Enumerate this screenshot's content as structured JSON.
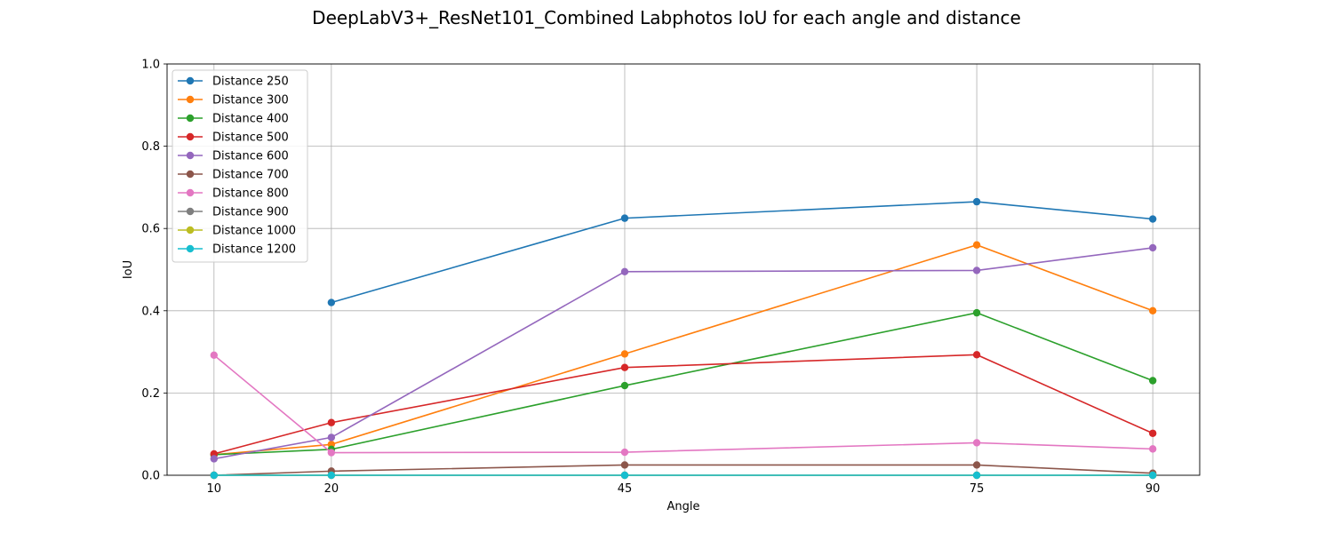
{
  "chart_data": {
    "type": "line",
    "title": "DeepLabV3+_ResNet101_Combined Labphotos IoU for each angle and distance",
    "xlabel": "Angle",
    "ylabel": "IoU",
    "x": [
      10,
      20,
      45,
      75,
      90
    ],
    "xlim": [
      6,
      94
    ],
    "ylim": [
      0,
      1.0
    ],
    "yticks": [
      "0.0",
      "0.2",
      "0.4",
      "0.6",
      "0.8",
      "1.0"
    ],
    "xticks": [
      "10",
      "20",
      "45",
      "75",
      "90"
    ],
    "grid": true,
    "legend_position": "top-left",
    "series": [
      {
        "name": "Distance 250",
        "color": "#1f77b4",
        "values": [
          null,
          0.42,
          0.625,
          0.665,
          0.623
        ]
      },
      {
        "name": "Distance 300",
        "color": "#ff7f0e",
        "values": [
          0.05,
          0.075,
          0.295,
          0.56,
          0.4
        ]
      },
      {
        "name": "Distance 400",
        "color": "#2ca02c",
        "values": [
          0.05,
          0.063,
          0.218,
          0.395,
          0.23
        ]
      },
      {
        "name": "Distance 500",
        "color": "#d62728",
        "values": [
          0.052,
          0.128,
          0.262,
          0.293,
          0.102
        ]
      },
      {
        "name": "Distance 600",
        "color": "#9467bd",
        "values": [
          0.04,
          0.092,
          0.495,
          0.498,
          0.553
        ]
      },
      {
        "name": "Distance 700",
        "color": "#8c564b",
        "values": [
          0.0,
          0.01,
          0.025,
          0.025,
          0.005
        ]
      },
      {
        "name": "Distance 800",
        "color": "#e377c2",
        "values": [
          0.292,
          0.055,
          0.056,
          0.079,
          0.064
        ]
      },
      {
        "name": "Distance 900",
        "color": "#7f7f7f",
        "values": [
          0.0,
          0.0,
          0.0,
          0.0,
          0.0
        ]
      },
      {
        "name": "Distance 1000",
        "color": "#bcbd22",
        "values": [
          0.0,
          0.0,
          0.0,
          0.0,
          0.0
        ]
      },
      {
        "name": "Distance 1200",
        "color": "#17becf",
        "values": [
          0.0,
          0.0,
          0.0,
          0.0,
          0.0
        ]
      }
    ]
  }
}
